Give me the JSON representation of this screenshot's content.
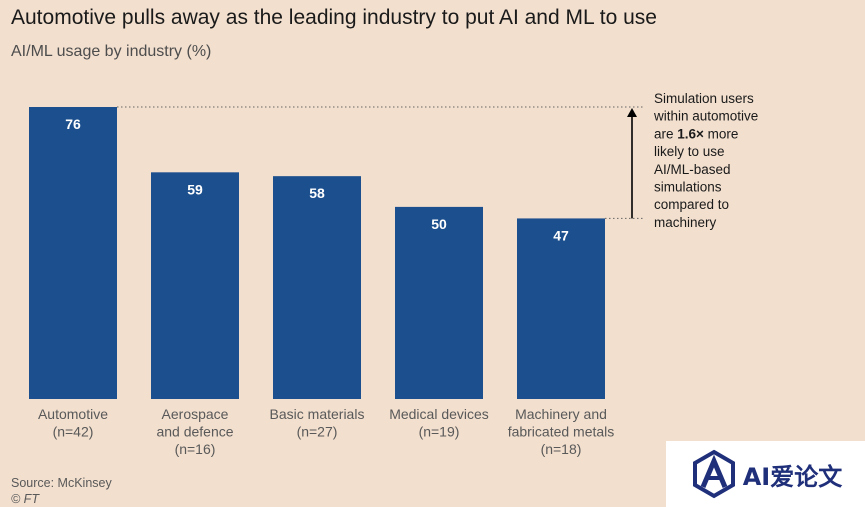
{
  "title": "Automotive pulls away as the leading industry to put AI and ML to use",
  "subtitle": "AI/ML usage by industry (%)",
  "chart_data": {
    "type": "bar",
    "categories": [
      [
        "Automotive",
        "(n=42)"
      ],
      [
        "Aerospace",
        "and defence",
        "(n=16)"
      ],
      [
        "Basic materials",
        "(n=27)"
      ],
      [
        "Medical devices",
        "(n=19)"
      ],
      [
        "Machinery and",
        "fabricated metals",
        "(n=18)"
      ]
    ],
    "values": [
      76,
      59,
      58,
      50,
      47
    ],
    "ylim": [
      0,
      76
    ],
    "bar_color": "#1c4f8d",
    "annotation": {
      "lines": [
        [
          "Simulation users"
        ],
        [
          "within automotive"
        ],
        [
          "are ",
          {
            "bold": "1.6×"
          },
          " more"
        ],
        [
          "likely to use"
        ],
        [
          "AI/ML-based"
        ],
        [
          "simulations"
        ],
        [
          "compared to"
        ],
        [
          "machinery"
        ]
      ]
    }
  },
  "source": "Source: McKinsey",
  "copyright": "© FT",
  "watermark": "AI爱论文",
  "colors": {
    "background": "#f2dfce",
    "bar": "#1c4f8d",
    "watermark_text": "#1f2f7a"
  }
}
